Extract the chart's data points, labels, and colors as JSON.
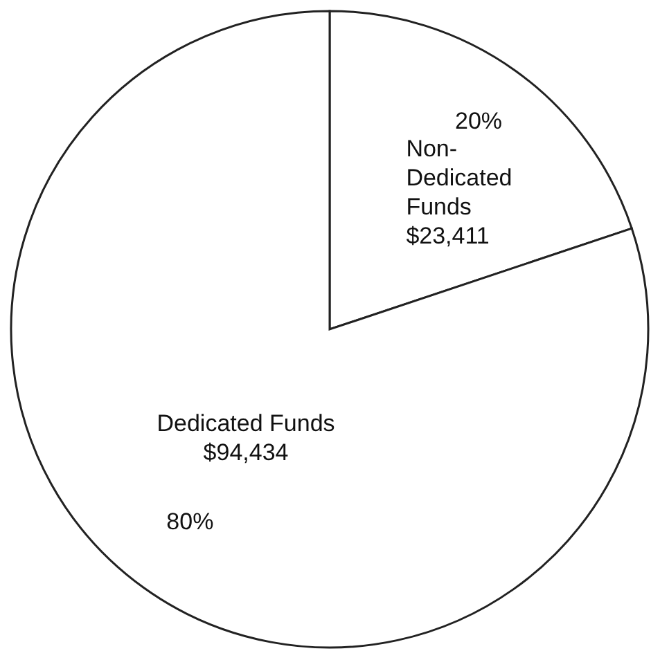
{
  "chart_data": {
    "type": "pie",
    "categories": [
      "Non-Dedicated Funds",
      "Dedicated Funds"
    ],
    "values": [
      23411,
      94434
    ],
    "colors": [
      "#ffffff",
      "#ffffff"
    ],
    "value_labels": [
      "$23,411",
      "$94,434"
    ],
    "annotations": [
      "20%",
      "80%"
    ],
    "legend": false
  }
}
